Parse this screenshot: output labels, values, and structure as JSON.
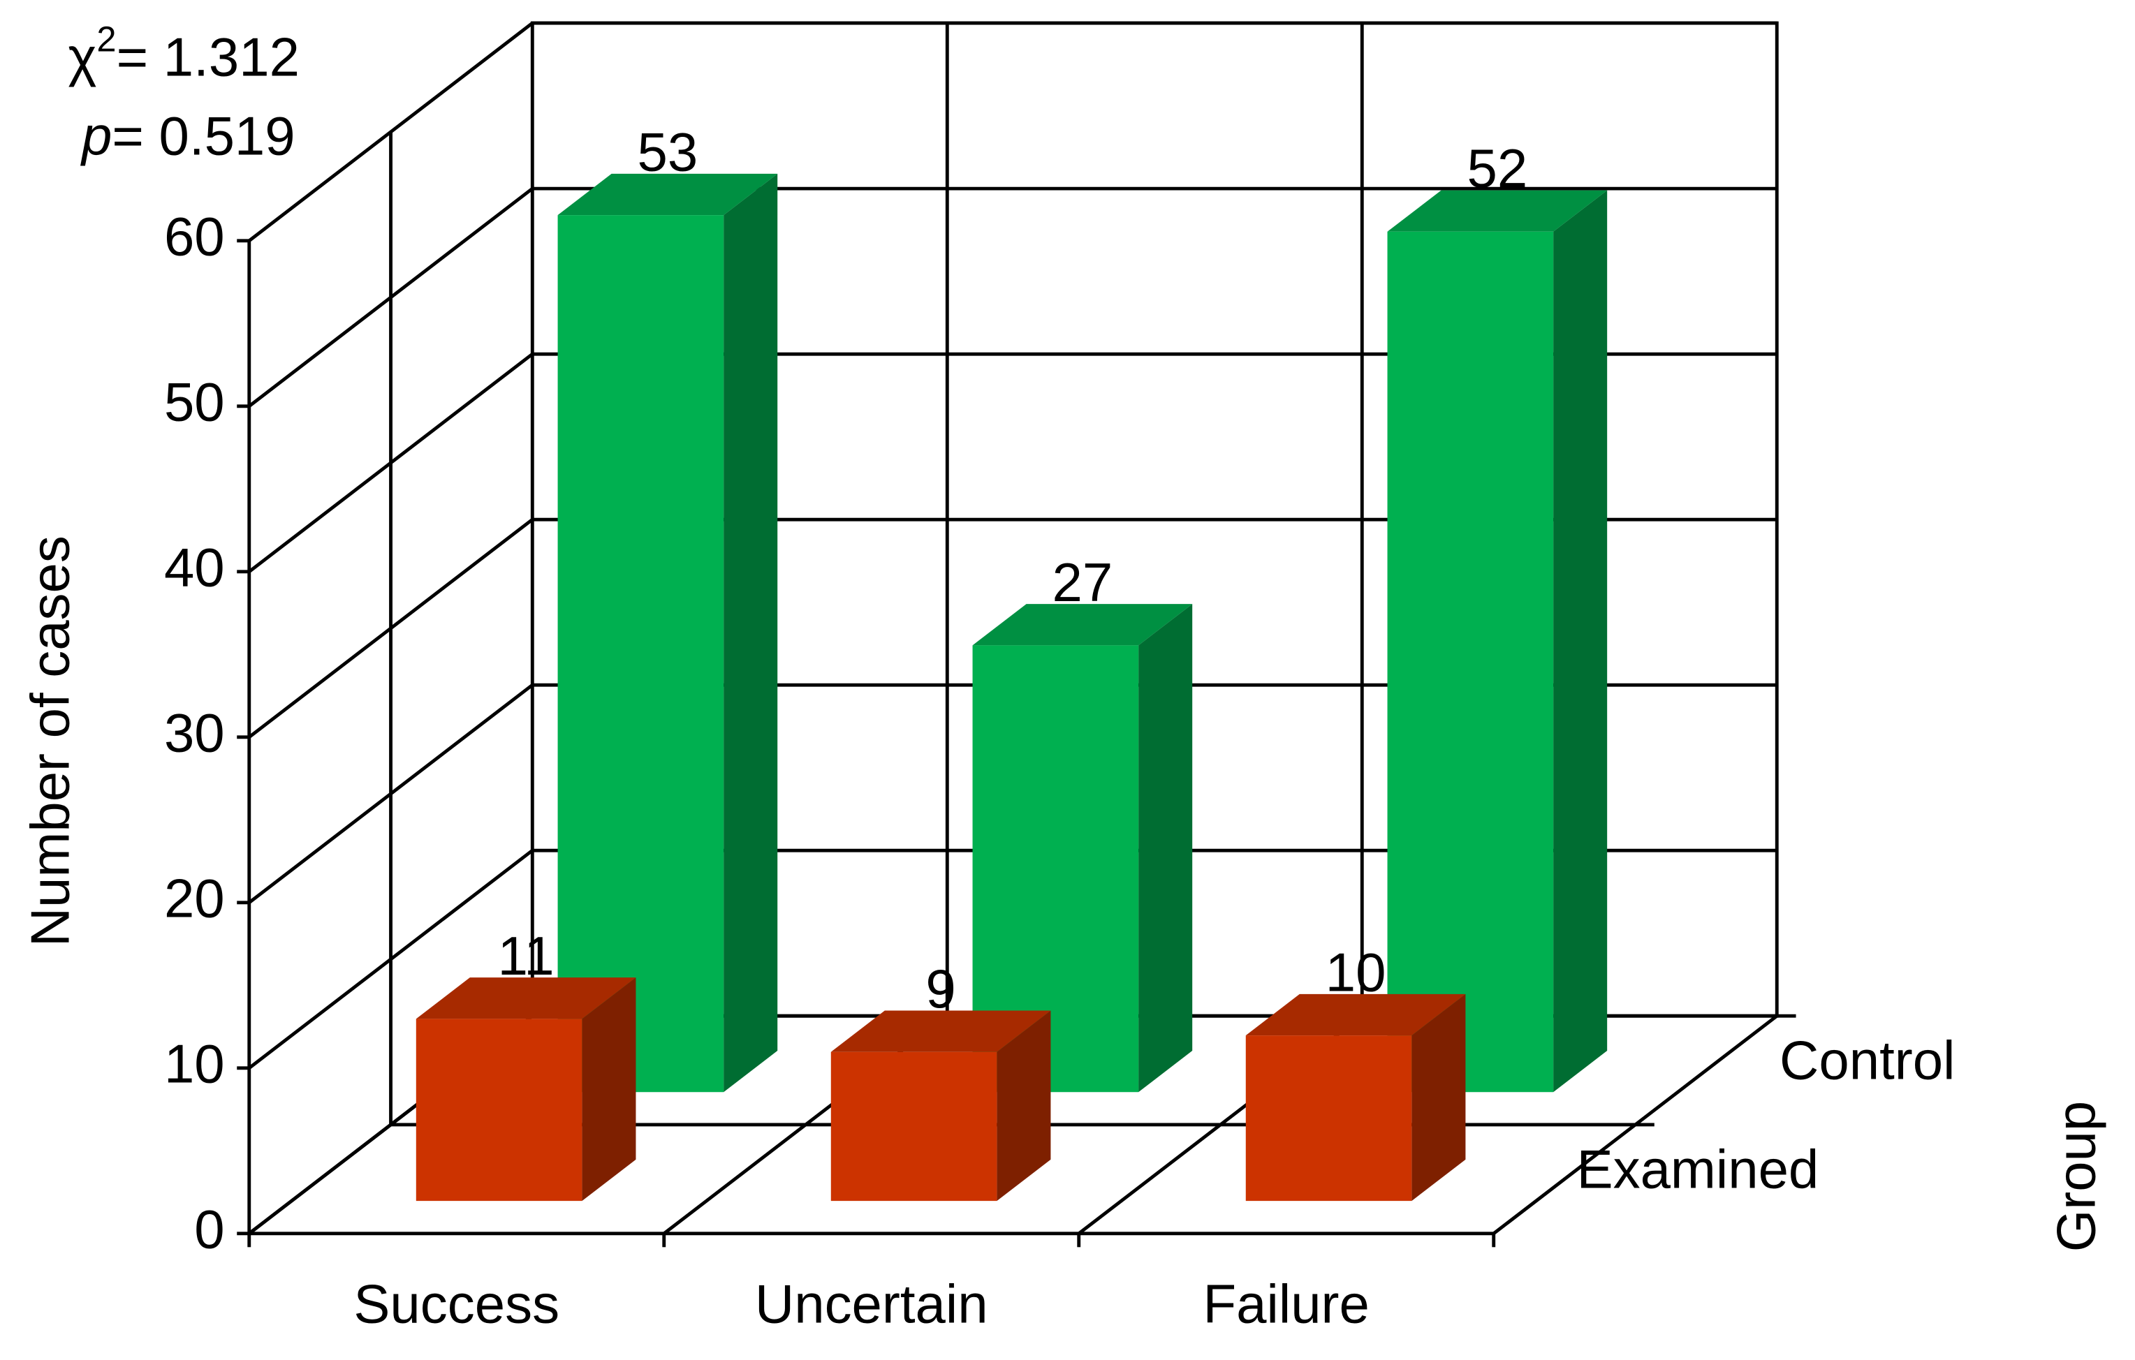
{
  "chart_data": {
    "type": "bar3d",
    "y_label": "Number of cases",
    "depth_label": "Group",
    "annotation": {
      "chi": "χ",
      "chi_power": "2",
      "chi_text": "= 1.312",
      "p": "p",
      "p_text": "= 0.519"
    },
    "categories": [
      "Success",
      "Uncertain",
      "Failure"
    ],
    "series": [
      {
        "name": "Examined",
        "color": "#cc3300",
        "values": [
          11,
          9,
          10
        ]
      },
      {
        "name": "Control",
        "color": "#00b050",
        "values": [
          53,
          27,
          52
        ]
      }
    ],
    "ylim": [
      0,
      60
    ],
    "yticks": [
      0,
      10,
      20,
      30,
      40,
      50,
      60
    ],
    "grid": true
  }
}
